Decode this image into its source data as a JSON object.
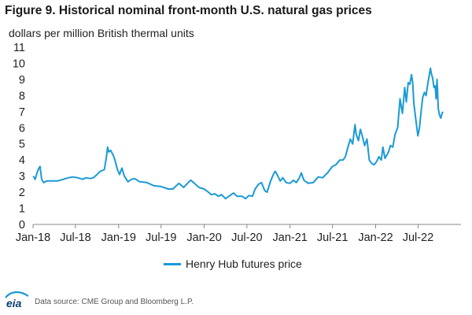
{
  "header": {
    "title": "Figure 9. Historical nominal front-month U.S. natural gas prices",
    "subtitle": "dollars per million British thermal units"
  },
  "footer": {
    "source": "Data source: CME Group and Bloomberg L.P.",
    "logo_text": "eia"
  },
  "colors": {
    "series": "#1a9ad6",
    "axis": "#888888",
    "text": "#222222",
    "logo": "#0b3d6e"
  },
  "chart_data": {
    "type": "line",
    "title": "Figure 9. Historical nominal front-month U.S. natural gas prices",
    "ylabel": "dollars per million British thermal units",
    "xlabel": "",
    "ylim": [
      0,
      11
    ],
    "yticks": [
      "0",
      "1",
      "2",
      "3",
      "4",
      "5",
      "6",
      "7",
      "8",
      "9",
      "10",
      "11"
    ],
    "xlim": [
      "2018-01-01",
      "2022-12-31"
    ],
    "xticks": [
      {
        "label": "Jan-18",
        "date": "2018-01-01"
      },
      {
        "label": "Jul-18",
        "date": "2018-07-01"
      },
      {
        "label": "Jan-19",
        "date": "2019-01-01"
      },
      {
        "label": "Jul-19",
        "date": "2019-07-01"
      },
      {
        "label": "Jan-20",
        "date": "2020-01-01"
      },
      {
        "label": "Jul-20",
        "date": "2020-07-01"
      },
      {
        "label": "Jan-21",
        "date": "2021-01-01"
      },
      {
        "label": "Jul-21",
        "date": "2021-07-01"
      },
      {
        "label": "Jan-22",
        "date": "2022-01-01"
      },
      {
        "label": "Jul-22",
        "date": "2022-07-01"
      }
    ],
    "grid": false,
    "legend_position": "bottom-center",
    "series": [
      {
        "name": "Henry Hub futures price",
        "points": [
          [
            "2018-01-02",
            3.0
          ],
          [
            "2018-01-10",
            2.8
          ],
          [
            "2018-01-18",
            3.2
          ],
          [
            "2018-01-26",
            3.5
          ],
          [
            "2018-01-31",
            3.6
          ],
          [
            "2018-02-07",
            2.8
          ],
          [
            "2018-02-15",
            2.6
          ],
          [
            "2018-03-01",
            2.7
          ],
          [
            "2018-03-20",
            2.7
          ],
          [
            "2018-04-15",
            2.7
          ],
          [
            "2018-05-10",
            2.8
          ],
          [
            "2018-06-01",
            2.9
          ],
          [
            "2018-06-20",
            2.95
          ],
          [
            "2018-07-10",
            2.9
          ],
          [
            "2018-08-01",
            2.8
          ],
          [
            "2018-08-15",
            2.9
          ],
          [
            "2018-09-01",
            2.85
          ],
          [
            "2018-09-15",
            2.9
          ],
          [
            "2018-10-01",
            3.1
          ],
          [
            "2018-10-15",
            3.3
          ],
          [
            "2018-11-01",
            3.4
          ],
          [
            "2018-11-10",
            4.2
          ],
          [
            "2018-11-15",
            4.8
          ],
          [
            "2018-11-20",
            4.5
          ],
          [
            "2018-11-28",
            4.6
          ],
          [
            "2018-12-05",
            4.4
          ],
          [
            "2018-12-12",
            4.2
          ],
          [
            "2018-12-20",
            3.8
          ],
          [
            "2018-12-27",
            3.4
          ],
          [
            "2019-01-05",
            3.1
          ],
          [
            "2019-01-15",
            3.5
          ],
          [
            "2019-01-25",
            3.0
          ],
          [
            "2019-02-10",
            2.65
          ],
          [
            "2019-02-25",
            2.8
          ],
          [
            "2019-03-10",
            2.85
          ],
          [
            "2019-04-01",
            2.65
          ],
          [
            "2019-05-01",
            2.6
          ],
          [
            "2019-06-01",
            2.4
          ],
          [
            "2019-07-01",
            2.35
          ],
          [
            "2019-08-01",
            2.2
          ],
          [
            "2019-08-20",
            2.2
          ],
          [
            "2019-09-15",
            2.55
          ],
          [
            "2019-10-05",
            2.3
          ],
          [
            "2019-10-25",
            2.6
          ],
          [
            "2019-11-05",
            2.75
          ],
          [
            "2019-11-20",
            2.55
          ],
          [
            "2019-12-10",
            2.3
          ],
          [
            "2019-12-31",
            2.2
          ],
          [
            "2020-01-15",
            2.05
          ],
          [
            "2020-02-01",
            1.85
          ],
          [
            "2020-02-15",
            1.9
          ],
          [
            "2020-03-01",
            1.75
          ],
          [
            "2020-03-15",
            1.85
          ],
          [
            "2020-04-01",
            1.6
          ],
          [
            "2020-04-20",
            1.8
          ],
          [
            "2020-05-05",
            1.95
          ],
          [
            "2020-05-20",
            1.75
          ],
          [
            "2020-06-10",
            1.75
          ],
          [
            "2020-06-25",
            1.6
          ],
          [
            "2020-07-10",
            1.8
          ],
          [
            "2020-07-25",
            1.75
          ],
          [
            "2020-08-05",
            2.2
          ],
          [
            "2020-08-20",
            2.5
          ],
          [
            "2020-09-01",
            2.6
          ],
          [
            "2020-09-15",
            2.1
          ],
          [
            "2020-09-25",
            2.0
          ],
          [
            "2020-10-10",
            2.7
          ],
          [
            "2020-10-25",
            3.2
          ],
          [
            "2020-10-30",
            3.3
          ],
          [
            "2020-11-10",
            3.0
          ],
          [
            "2020-11-20",
            2.7
          ],
          [
            "2020-12-01",
            2.9
          ],
          [
            "2020-12-15",
            2.6
          ],
          [
            "2021-01-01",
            2.55
          ],
          [
            "2021-01-15",
            2.75
          ],
          [
            "2021-01-28",
            2.6
          ],
          [
            "2021-02-10",
            2.9
          ],
          [
            "2021-02-18",
            3.2
          ],
          [
            "2021-03-01",
            2.75
          ],
          [
            "2021-03-20",
            2.55
          ],
          [
            "2021-04-10",
            2.6
          ],
          [
            "2021-05-01",
            2.95
          ],
          [
            "2021-05-20",
            2.9
          ],
          [
            "2021-06-10",
            3.2
          ],
          [
            "2021-06-30",
            3.6
          ],
          [
            "2021-07-15",
            3.7
          ],
          [
            "2021-08-01",
            4.0
          ],
          [
            "2021-08-15",
            4.0
          ],
          [
            "2021-08-25",
            4.2
          ],
          [
            "2021-09-05",
            4.8
          ],
          [
            "2021-09-15",
            5.3
          ],
          [
            "2021-09-25",
            5.0
          ],
          [
            "2021-10-05",
            6.2
          ],
          [
            "2021-10-10",
            5.6
          ],
          [
            "2021-10-20",
            5.2
          ],
          [
            "2021-10-28",
            5.9
          ],
          [
            "2021-11-05",
            5.5
          ],
          [
            "2021-11-15",
            4.9
          ],
          [
            "2021-11-25",
            5.3
          ],
          [
            "2021-12-05",
            4.0
          ],
          [
            "2021-12-15",
            3.8
          ],
          [
            "2021-12-25",
            3.7
          ],
          [
            "2022-01-05",
            3.9
          ],
          [
            "2022-01-15",
            4.2
          ],
          [
            "2022-01-25",
            4.0
          ],
          [
            "2022-02-01",
            4.8
          ],
          [
            "2022-02-10",
            4.1
          ],
          [
            "2022-02-25",
            4.5
          ],
          [
            "2022-03-05",
            4.9
          ],
          [
            "2022-03-15",
            4.8
          ],
          [
            "2022-03-25",
            5.6
          ],
          [
            "2022-04-05",
            6.0
          ],
          [
            "2022-04-15",
            7.8
          ],
          [
            "2022-04-25",
            6.9
          ],
          [
            "2022-05-05",
            8.5
          ],
          [
            "2022-05-12",
            7.6
          ],
          [
            "2022-05-20",
            8.8
          ],
          [
            "2022-05-27",
            8.7
          ],
          [
            "2022-06-03",
            9.3
          ],
          [
            "2022-06-08",
            8.8
          ],
          [
            "2022-06-13",
            7.5
          ],
          [
            "2022-06-18",
            6.9
          ],
          [
            "2022-06-24",
            6.2
          ],
          [
            "2022-06-30",
            5.5
          ],
          [
            "2022-07-07",
            6.0
          ],
          [
            "2022-07-14",
            7.0
          ],
          [
            "2022-07-21",
            7.9
          ],
          [
            "2022-07-28",
            8.2
          ],
          [
            "2022-08-04",
            8.0
          ],
          [
            "2022-08-11",
            8.7
          ],
          [
            "2022-08-18",
            9.3
          ],
          [
            "2022-08-23",
            9.7
          ],
          [
            "2022-08-26",
            9.4
          ],
          [
            "2022-09-01",
            9.1
          ],
          [
            "2022-09-07",
            8.5
          ],
          [
            "2022-09-12",
            8.6
          ],
          [
            "2022-09-16",
            7.8
          ],
          [
            "2022-09-20",
            9.0
          ],
          [
            "2022-09-25",
            7.2
          ],
          [
            "2022-09-30",
            6.8
          ],
          [
            "2022-10-06",
            6.6
          ],
          [
            "2022-10-11",
            6.9
          ],
          [
            "2022-10-15",
            7.0
          ]
        ]
      }
    ]
  }
}
